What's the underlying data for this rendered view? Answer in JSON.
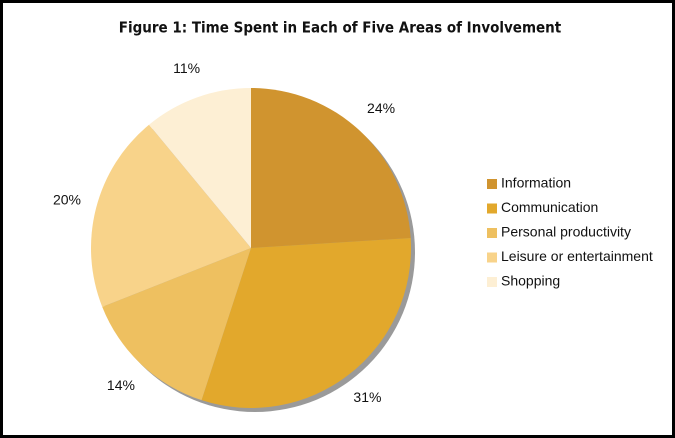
{
  "chart_data": {
    "type": "pie",
    "title": "Figure 1:  Time Spent in Each of Five Areas of Involvement",
    "categories": [
      "Information",
      "Communication",
      "Personal productivity",
      "Leisure or entertainment",
      "Shopping"
    ],
    "values": [
      24,
      31,
      14,
      20,
      11
    ],
    "value_labels": [
      "24%",
      "31%",
      "14%",
      "20%",
      "11%"
    ],
    "colors": [
      "#d0942f",
      "#e2a82c",
      "#eec060",
      "#f8d38a",
      "#fdefd4"
    ],
    "legend": "right"
  }
}
